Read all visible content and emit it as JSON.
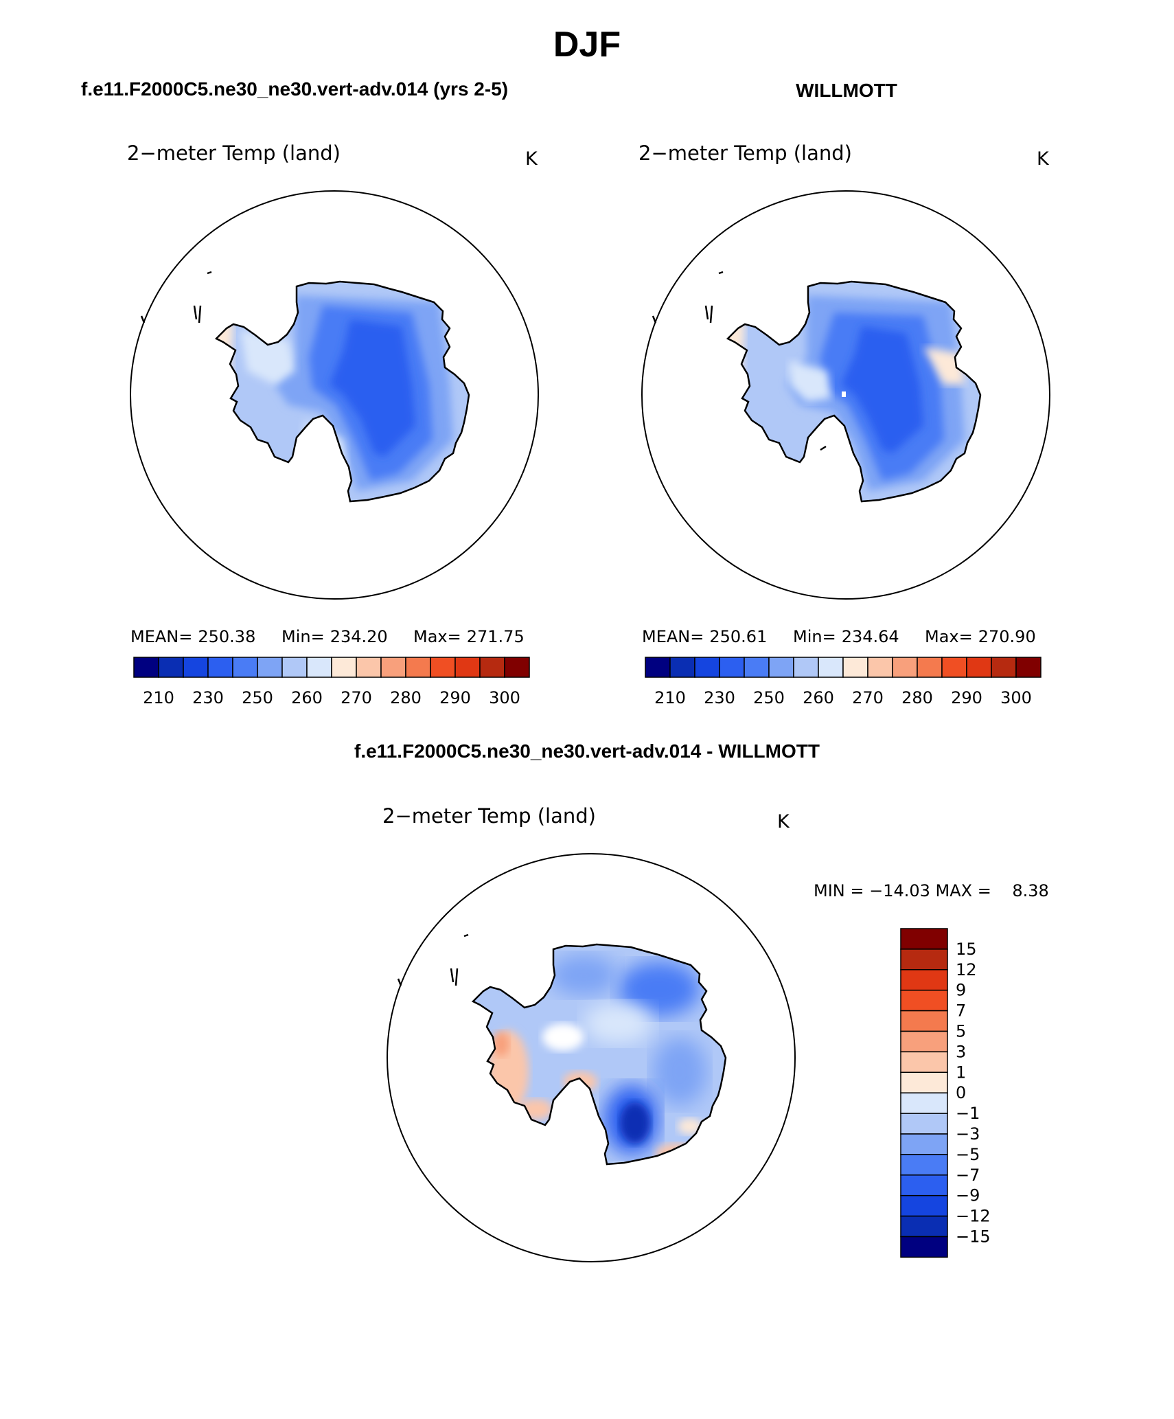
{
  "chart_data": [
    {
      "type": "heatmap",
      "panel": "model",
      "title": "2−meter Temp (land)",
      "units": "K",
      "stats": {
        "mean_label": "MEAN=",
        "mean": "250.38",
        "min_label": "Min=",
        "min": "234.20",
        "max_label": "Max=",
        "max": "271.75"
      },
      "colorbar_ticks": [
        "210",
        "230",
        "250",
        "260",
        "270",
        "280",
        "290",
        "300"
      ]
    },
    {
      "type": "heatmap",
      "panel": "observation",
      "title": "2−meter Temp (land)",
      "units": "K",
      "stats": {
        "mean_label": "MEAN=",
        "mean": "250.61",
        "min_label": "Min=",
        "min": "234.64",
        "max_label": "Max=",
        "max": "270.90"
      },
      "colorbar_ticks": [
        "210",
        "230",
        "250",
        "260",
        "270",
        "280",
        "290",
        "300"
      ]
    },
    {
      "type": "heatmap",
      "panel": "difference",
      "title": "2−meter Temp (land)",
      "units": "K",
      "min_max": "MIN = −14.03 MAX =    8.38",
      "colorbar_ticks": [
        "15",
        "12",
        "9",
        "7",
        "5",
        "3",
        "1",
        "0",
        "−1",
        "−3",
        "−5",
        "−7",
        "−9",
        "−12",
        "−15"
      ]
    }
  ],
  "page": {
    "season": "DJF",
    "left_title": "f.e11.F2000C5.ne30_ne30.vert-adv.014 (yrs 2-5)",
    "right_title": "WILLMOTT",
    "diff_title": "f.e11.F2000C5.ne30_ne30.vert-adv.014 - WILLMOTT"
  },
  "colors": {
    "abs_scale": [
      "#000080",
      "#0a2eb3",
      "#1545e0",
      "#2c5ff0",
      "#4a7cf5",
      "#7ea4f5",
      "#b0c8f7",
      "#d9e7fb",
      "#fde9d8",
      "#fbc6aa",
      "#f8a07c",
      "#f47a4e",
      "#f04f23",
      "#e03814",
      "#b62a10",
      "#800000"
    ],
    "diff_scale": [
      "#800000",
      "#b62a10",
      "#e03814",
      "#f04f23",
      "#f47a4e",
      "#f8a07c",
      "#fbc6aa",
      "#fde9d8",
      "#d9e7fb",
      "#b0c8f7",
      "#7ea4f5",
      "#4a7cf5",
      "#2c5ff0",
      "#1545e0",
      "#0a2eb3",
      "#000080"
    ]
  }
}
